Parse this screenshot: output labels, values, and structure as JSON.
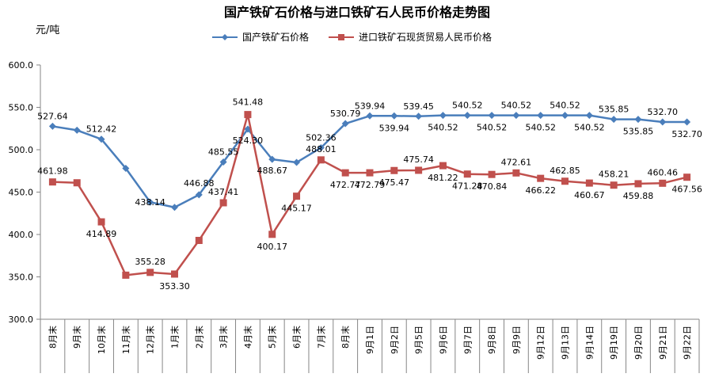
{
  "chart_data": {
    "type": "line",
    "title": "国产铁矿石价格与进口铁矿石人民币价格走势图",
    "ylabel": "元/吨",
    "xlabel": "",
    "ylim": [
      300,
      600
    ],
    "yticks": [
      "300.0",
      "350.0",
      "400.0",
      "450.0",
      "500.0",
      "550.0",
      "600.0"
    ],
    "grid": false,
    "legend": "top-center",
    "categories": [
      "8月末",
      "9月末",
      "10月末",
      "11月末",
      "12月末",
      "1月末",
      "2月末",
      "3月末",
      "4月末",
      "5月末",
      "6月末",
      "7月末",
      "8月末",
      "9月1日",
      "9月2日",
      "9月5日",
      "9月6日",
      "9月7日",
      "9月8日",
      "9月9日",
      "9月12日",
      "9月13日",
      "9月14日",
      "9月19日",
      "9月20日",
      "9月21日",
      "9月22日"
    ],
    "series": [
      {
        "name": "国产铁矿石价格",
        "color": "#4a7ebb",
        "marker": "diamond",
        "values": [
          527.64,
          523,
          512.42,
          478,
          438.14,
          432,
          446.88,
          485.55,
          524.3,
          488.67,
          485,
          502.36,
          530.79,
          539.94,
          539.94,
          539.45,
          540.52,
          540.52,
          540.52,
          540.52,
          540.52,
          540.52,
          540.52,
          535.85,
          535.85,
          532.7,
          532.7
        ],
        "labels": [
          "527.64",
          "",
          "512.42",
          "",
          "438.14",
          "",
          "446.88",
          "485.55",
          "524.30",
          "488.67",
          "",
          "502.36",
          "530.79",
          "539.94",
          "539.94",
          "539.45",
          "540.52",
          "540.52",
          "540.52",
          "540.52",
          "540.52",
          "540.52",
          "540.52",
          "535.85",
          "535.85",
          "532.70",
          "532.70"
        ]
      },
      {
        "name": "进口铁矿石现货贸易人民币价格",
        "color": "#c0504d",
        "marker": "square",
        "values": [
          461.98,
          461,
          414.89,
          352,
          355.28,
          353.3,
          393,
          437.41,
          541.48,
          400.17,
          445.17,
          488.01,
          472.77,
          472.79,
          475.47,
          475.74,
          481.22,
          471.28,
          470.84,
          472.61,
          466.22,
          462.85,
          460.67,
          458.21,
          459.88,
          460.46,
          467.56
        ],
        "labels": [
          "461.98",
          "",
          "414.89",
          "",
          "355.28",
          "353.30",
          "",
          "437.41",
          "541.48",
          "400.17",
          "445.17",
          "488.01",
          "472.77",
          "472.79",
          "475.47",
          "475.74",
          "481.22",
          "471.28",
          "470.84",
          "472.61",
          "466.22",
          "462.85",
          "460.67",
          "458.21",
          "459.88",
          "460.46",
          "467.56"
        ]
      }
    ]
  }
}
